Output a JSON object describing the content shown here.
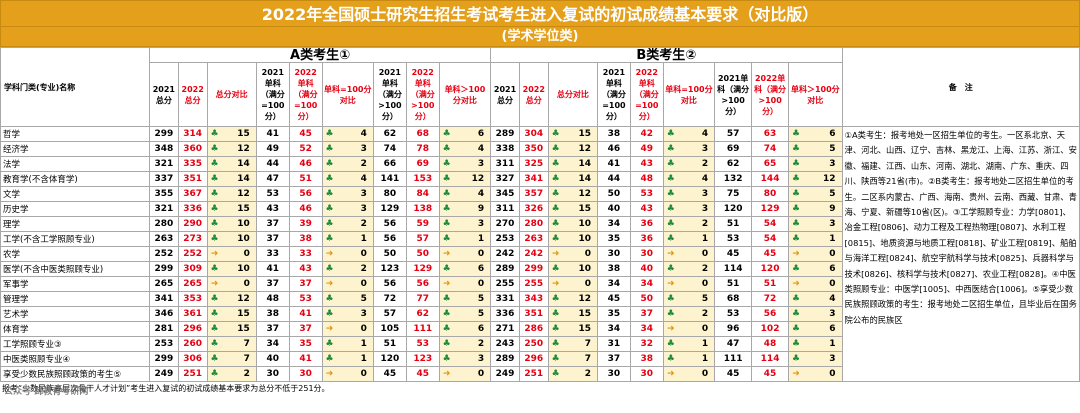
{
  "title": "2022年全国硕士研究生招生考试考生进入复试的初试成绩基本要求（对比版）",
  "subtitle": "(学术学位类)",
  "header": {
    "subject": "学科门类(专业)名称",
    "group_a": "A类考生①",
    "group_b": "B类考生②",
    "h2021_total": "2021总分",
    "h2022_total": "2022总分",
    "h_total_cmp": "总分对比",
    "h2021_s100": "2021单科（满分=100分）",
    "h2022_s100": "2022单科（满分=100分）",
    "h_s100_cmp": "单科=100分对比",
    "h2021_sgt100": "2021单科（满分>100分）",
    "h2022_sgt100": "2022单科（满分>100分）",
    "h_sgt100_cmp": "单科＞100分对比",
    "b2021_sgt100": "2021单科（满分>100分）",
    "b2022_sgt100": "2022单科（满分>100分）",
    "remarks": "备　注"
  },
  "rows": [
    {
      "name": "哲学",
      "a": [
        299,
        314,
        "up",
        15,
        41,
        45,
        "up",
        4,
        62,
        68,
        "up",
        6
      ],
      "b": [
        289,
        304,
        "up",
        15,
        38,
        42,
        "up",
        4,
        57,
        63,
        "up",
        6
      ]
    },
    {
      "name": "经济学",
      "a": [
        348,
        360,
        "up",
        12,
        49,
        52,
        "up",
        3,
        74,
        78,
        "up",
        4
      ],
      "b": [
        338,
        350,
        "up",
        12,
        46,
        49,
        "up",
        3,
        69,
        74,
        "up",
        5
      ]
    },
    {
      "name": "法学",
      "a": [
        321,
        335,
        "up",
        14,
        44,
        46,
        "up",
        2,
        66,
        69,
        "up",
        3
      ],
      "b": [
        311,
        325,
        "up",
        14,
        41,
        43,
        "up",
        2,
        62,
        65,
        "up",
        3
      ]
    },
    {
      "name": "教育学(不含体育学)",
      "a": [
        337,
        351,
        "up",
        14,
        47,
        51,
        "up",
        4,
        141,
        153,
        "up",
        12
      ],
      "b": [
        327,
        341,
        "up",
        14,
        44,
        48,
        "up",
        4,
        132,
        144,
        "up",
        12
      ]
    },
    {
      "name": "文学",
      "a": [
        355,
        367,
        "up",
        12,
        53,
        56,
        "up",
        3,
        80,
        84,
        "up",
        4
      ],
      "b": [
        345,
        357,
        "up",
        12,
        50,
        53,
        "up",
        3,
        75,
        80,
        "up",
        5
      ]
    },
    {
      "name": "历史学",
      "a": [
        321,
        336,
        "up",
        15,
        43,
        46,
        "up",
        3,
        129,
        138,
        "up",
        9
      ],
      "b": [
        311,
        326,
        "up",
        15,
        40,
        43,
        "up",
        3,
        120,
        129,
        "up",
        9
      ]
    },
    {
      "name": "理学",
      "a": [
        280,
        290,
        "up",
        10,
        37,
        39,
        "up",
        2,
        56,
        59,
        "up",
        3
      ],
      "b": [
        270,
        280,
        "up",
        10,
        34,
        36,
        "up",
        2,
        51,
        54,
        "up",
        3
      ]
    },
    {
      "name": "工学(不含工学照顾专业)",
      "a": [
        263,
        273,
        "up",
        10,
        37,
        38,
        "up",
        1,
        56,
        57,
        "up",
        1
      ],
      "b": [
        253,
        263,
        "up",
        10,
        35,
        36,
        "up",
        1,
        53,
        54,
        "up",
        1
      ]
    },
    {
      "name": "农学",
      "a": [
        252,
        252,
        "eq",
        0,
        33,
        33,
        "eq",
        0,
        50,
        50,
        "eq",
        0
      ],
      "b": [
        242,
        242,
        "eq",
        0,
        30,
        30,
        "eq",
        0,
        45,
        45,
        "eq",
        0
      ]
    },
    {
      "name": "医学(不含中医类照顾专业)",
      "a": [
        299,
        309,
        "up",
        10,
        41,
        43,
        "up",
        2,
        123,
        129,
        "up",
        6
      ],
      "b": [
        289,
        299,
        "up",
        10,
        38,
        40,
        "up",
        2,
        114,
        120,
        "up",
        6
      ]
    },
    {
      "name": "军事学",
      "a": [
        265,
        265,
        "eq",
        0,
        37,
        37,
        "eq",
        0,
        56,
        56,
        "eq",
        0
      ],
      "b": [
        255,
        255,
        "eq",
        0,
        34,
        34,
        "eq",
        0,
        51,
        51,
        "eq",
        0
      ]
    },
    {
      "name": "管理学",
      "a": [
        341,
        353,
        "up",
        12,
        48,
        53,
        "up",
        5,
        72,
        77,
        "up",
        5
      ],
      "b": [
        331,
        343,
        "up",
        12,
        45,
        50,
        "up",
        5,
        68,
        72,
        "up",
        4
      ]
    },
    {
      "name": "艺术学",
      "a": [
        346,
        361,
        "up",
        15,
        38,
        41,
        "up",
        3,
        57,
        62,
        "up",
        5
      ],
      "b": [
        336,
        351,
        "up",
        15,
        35,
        37,
        "up",
        2,
        53,
        56,
        "up",
        3
      ]
    },
    {
      "name": "体育学",
      "a": [
        281,
        296,
        "up",
        15,
        37,
        37,
        "eq",
        0,
        105,
        111,
        "up",
        6
      ],
      "b": [
        271,
        286,
        "up",
        15,
        34,
        34,
        "eq",
        0,
        96,
        102,
        "up",
        6
      ]
    },
    {
      "name": "工学照顾专业③",
      "a": [
        253,
        260,
        "up",
        7,
        34,
        35,
        "up",
        1,
        51,
        53,
        "up",
        2
      ],
      "b": [
        243,
        250,
        "up",
        7,
        31,
        32,
        "up",
        1,
        47,
        48,
        "up",
        1
      ]
    },
    {
      "name": "中医类照顾专业④",
      "a": [
        299,
        306,
        "up",
        7,
        40,
        41,
        "up",
        1,
        120,
        123,
        "up",
        3
      ],
      "b": [
        289,
        296,
        "up",
        7,
        37,
        38,
        "up",
        1,
        111,
        114,
        "up",
        3
      ]
    },
    {
      "name": "享受少数民族照顾政策的考生⑤",
      "a": [
        249,
        251,
        "up",
        2,
        30,
        30,
        "eq",
        0,
        45,
        45,
        "eq",
        0
      ],
      "b": [
        249,
        251,
        "up",
        2,
        30,
        30,
        "eq",
        0,
        45,
        45,
        "eq",
        0
      ]
    }
  ],
  "remarks": "①A类考生：报考地处一区招生单位的考生。一区系北京、天津、河北、山西、辽宁、吉林、黑龙江、上海、江苏、浙江、安徽、福建、江西、山东、河南、湖北、湖南、广东、重庆、四川、陕西等21省(市)。②B类考生：报考地处二区招生单位的考生。二区系内蒙古、广西、海南、贵州、云南、西藏、甘肃、青海、宁夏、新疆等10省(区)。③工学照顾专业：力学[0801]、冶金工程[0806]、动力工程及工程热物理[0807]、水利工程[0815]、地质资源与地质工程[0818]、矿业工程[0819]、船舶与海洋工程[0824]、航空宇航科学与技术[0825]、兵器科学与技术[0826]、核科学与技术[0827]、农业工程[0828]。④中医类照顾专业：中医学[1005]、中西医结合[1006]。⑤享受少数民族照顾政策的考生：报考地处二区招生单位，且毕业后在国务院公布的民族区",
  "footer": "报考“少数民族高层次骨干人才计划”考生进入复试的初试成绩基本要求为总分不低于251分。",
  "watermark": "公众号·蹄教育考研网",
  "colors": {
    "orange": "#e5a01b",
    "red": "#e60012",
    "green": "#1e8a3a",
    "yellow": "#e39513",
    "highlight": "#fdf4cf"
  },
  "icons": {
    "up": "tree-up-icon",
    "eq": "arrow-right-icon"
  }
}
